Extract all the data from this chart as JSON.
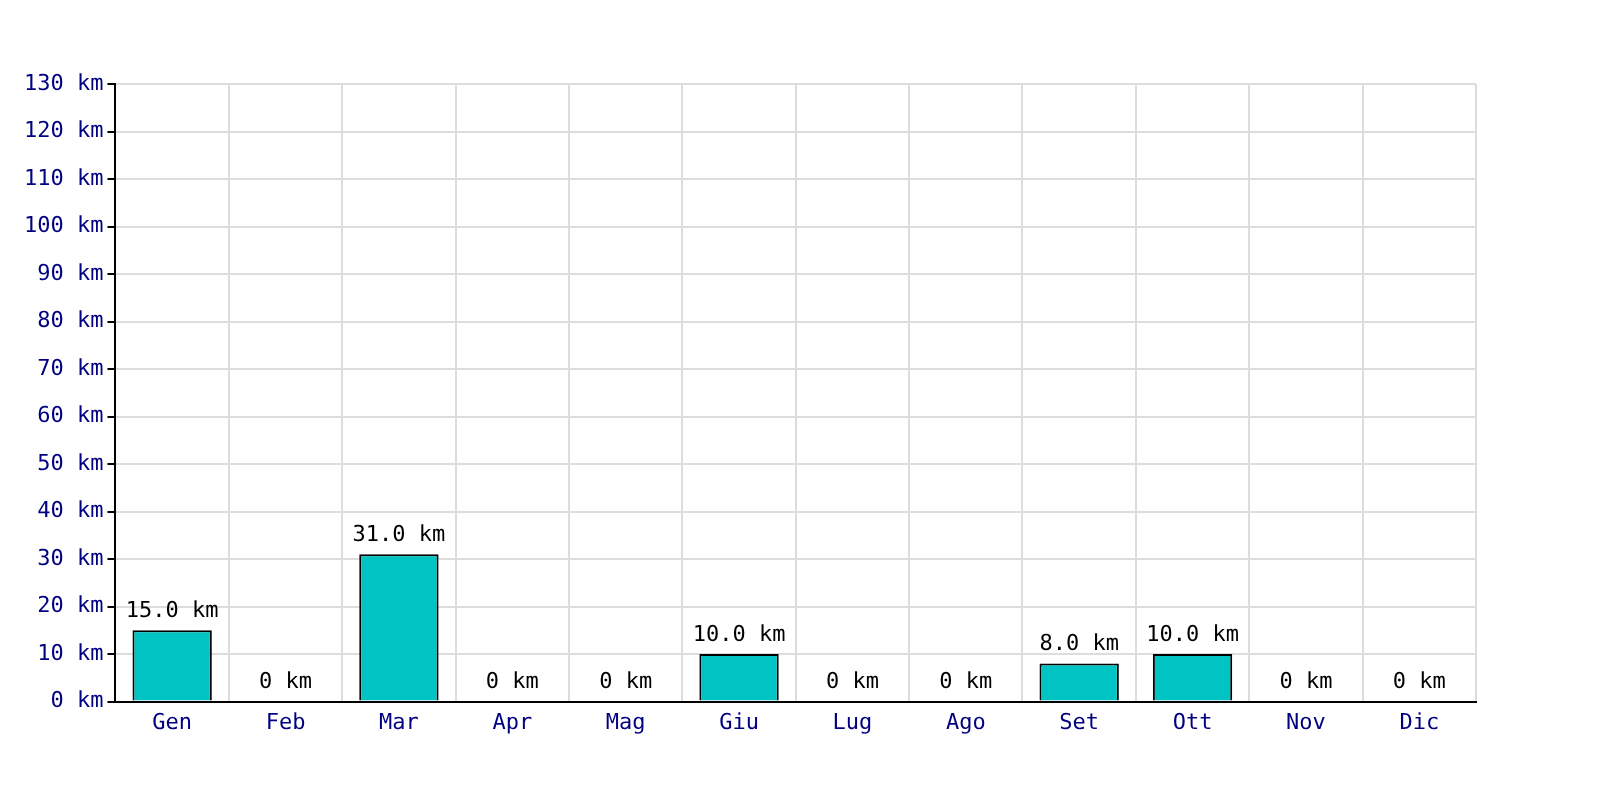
{
  "chart_data": {
    "type": "bar",
    "categories": [
      "Gen",
      "Feb",
      "Mar",
      "Apr",
      "Mag",
      "Giu",
      "Lug",
      "Ago",
      "Set",
      "Ott",
      "Nov",
      "Dic"
    ],
    "values": [
      15,
      0,
      31,
      0,
      0,
      10,
      0,
      0,
      8,
      10,
      0,
      0
    ],
    "value_labels": [
      "15.0 km",
      "0 km",
      "31.0 km",
      "0 km",
      "0 km",
      "10.0 km",
      "0 km",
      "0 km",
      "8.0 km",
      "10.0 km",
      "0 km",
      "0 km"
    ],
    "color": "#00c4c4",
    "ylim": [
      0,
      130
    ],
    "yticks": [
      {
        "value": 0,
        "label": "0 km"
      },
      {
        "value": 10,
        "label": "10 km"
      },
      {
        "value": 20,
        "label": "20 km"
      },
      {
        "value": 30,
        "label": "30 km"
      },
      {
        "value": 40,
        "label": "40 km"
      },
      {
        "value": 50,
        "label": "50 km"
      },
      {
        "value": 60,
        "label": "60 km"
      },
      {
        "value": 70,
        "label": "70 km"
      },
      {
        "value": 80,
        "label": "80 km"
      },
      {
        "value": 90,
        "label": "90 km"
      },
      {
        "value": 100,
        "label": "100 km"
      },
      {
        "value": 110,
        "label": "110 km"
      },
      {
        "value": 120,
        "label": "120 km"
      },
      {
        "value": 130,
        "label": "130 km"
      }
    ],
    "grid": true
  }
}
